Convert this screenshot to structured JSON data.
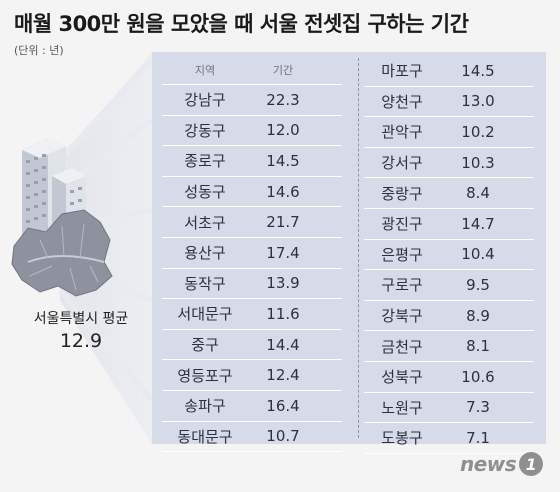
{
  "title": "매월 300만 원을 모았을 때 서울 전셋집 구하는 기간",
  "unit": "(단위 : 년)",
  "table": {
    "header": {
      "region": "지역",
      "period": "기간"
    },
    "left": [
      {
        "region": "강남구",
        "value": "22.3"
      },
      {
        "region": "강동구",
        "value": "12.0"
      },
      {
        "region": "종로구",
        "value": "14.5"
      },
      {
        "region": "성동구",
        "value": "14.6"
      },
      {
        "region": "서초구",
        "value": "21.7"
      },
      {
        "region": "용산구",
        "value": "17.4"
      },
      {
        "region": "동작구",
        "value": "13.9"
      },
      {
        "region": "서대문구",
        "value": "11.6"
      },
      {
        "region": "중구",
        "value": "14.4"
      },
      {
        "region": "영등포구",
        "value": "12.4"
      },
      {
        "region": "송파구",
        "value": "16.4"
      },
      {
        "region": "동대문구",
        "value": "10.7"
      }
    ],
    "right": [
      {
        "region": "마포구",
        "value": "14.5"
      },
      {
        "region": "양천구",
        "value": "13.0"
      },
      {
        "region": "관악구",
        "value": "10.2"
      },
      {
        "region": "강서구",
        "value": "10.3"
      },
      {
        "region": "중랑구",
        "value": "8.4"
      },
      {
        "region": "광진구",
        "value": "14.7"
      },
      {
        "region": "은평구",
        "value": "10.4"
      },
      {
        "region": "구로구",
        "value": "9.5"
      },
      {
        "region": "강북구",
        "value": "8.9"
      },
      {
        "region": "금천구",
        "value": "8.1"
      },
      {
        "region": "성북구",
        "value": "10.6"
      },
      {
        "region": "노원구",
        "value": "7.3"
      },
      {
        "region": "도봉구",
        "value": "7.1"
      }
    ]
  },
  "average": {
    "label": "서울특별시 평균",
    "value": "12.9"
  },
  "logo": {
    "text": "news",
    "badge": "1"
  },
  "colors": {
    "panel": "#d5dbe8",
    "map": "#8d929e",
    "building": "#c9ced8"
  },
  "icons": [
    "apartment-building-icon",
    "seoul-map-icon"
  ]
}
